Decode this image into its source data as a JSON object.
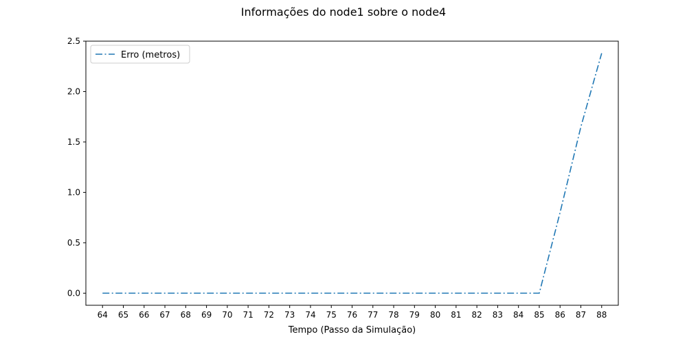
{
  "chart_data": {
    "type": "line",
    "title": "Informações do node1 sobre o node4",
    "xlabel": "Tempo (Passo da Simulação)",
    "ylabel": "",
    "x": [
      64,
      65,
      66,
      67,
      68,
      69,
      70,
      71,
      72,
      73,
      74,
      75,
      76,
      77,
      78,
      79,
      80,
      81,
      82,
      83,
      84,
      85,
      86,
      87,
      88
    ],
    "x_ticks": [
      "64",
      "65",
      "66",
      "67",
      "68",
      "69",
      "70",
      "71",
      "72",
      "73",
      "74",
      "75",
      "76",
      "77",
      "78",
      "79",
      "80",
      "81",
      "82",
      "83",
      "84",
      "85",
      "86",
      "87",
      "88"
    ],
    "y_ticks": [
      "0.0",
      "0.5",
      "1.0",
      "1.5",
      "2.0",
      "2.5"
    ],
    "xlim": [
      63.2,
      88.8
    ],
    "ylim": [
      -0.12,
      2.5
    ],
    "grid": false,
    "legend_position": "top-left",
    "series": [
      {
        "name": "Erro (metros)",
        "color": "#1f77b4",
        "line_style": "dash-dot",
        "values": [
          0,
          0,
          0,
          0,
          0,
          0,
          0,
          0,
          0,
          0,
          0,
          0,
          0,
          0,
          0,
          0,
          0,
          0,
          0,
          0,
          0,
          0,
          0.8,
          1.65,
          2.38
        ]
      }
    ]
  }
}
